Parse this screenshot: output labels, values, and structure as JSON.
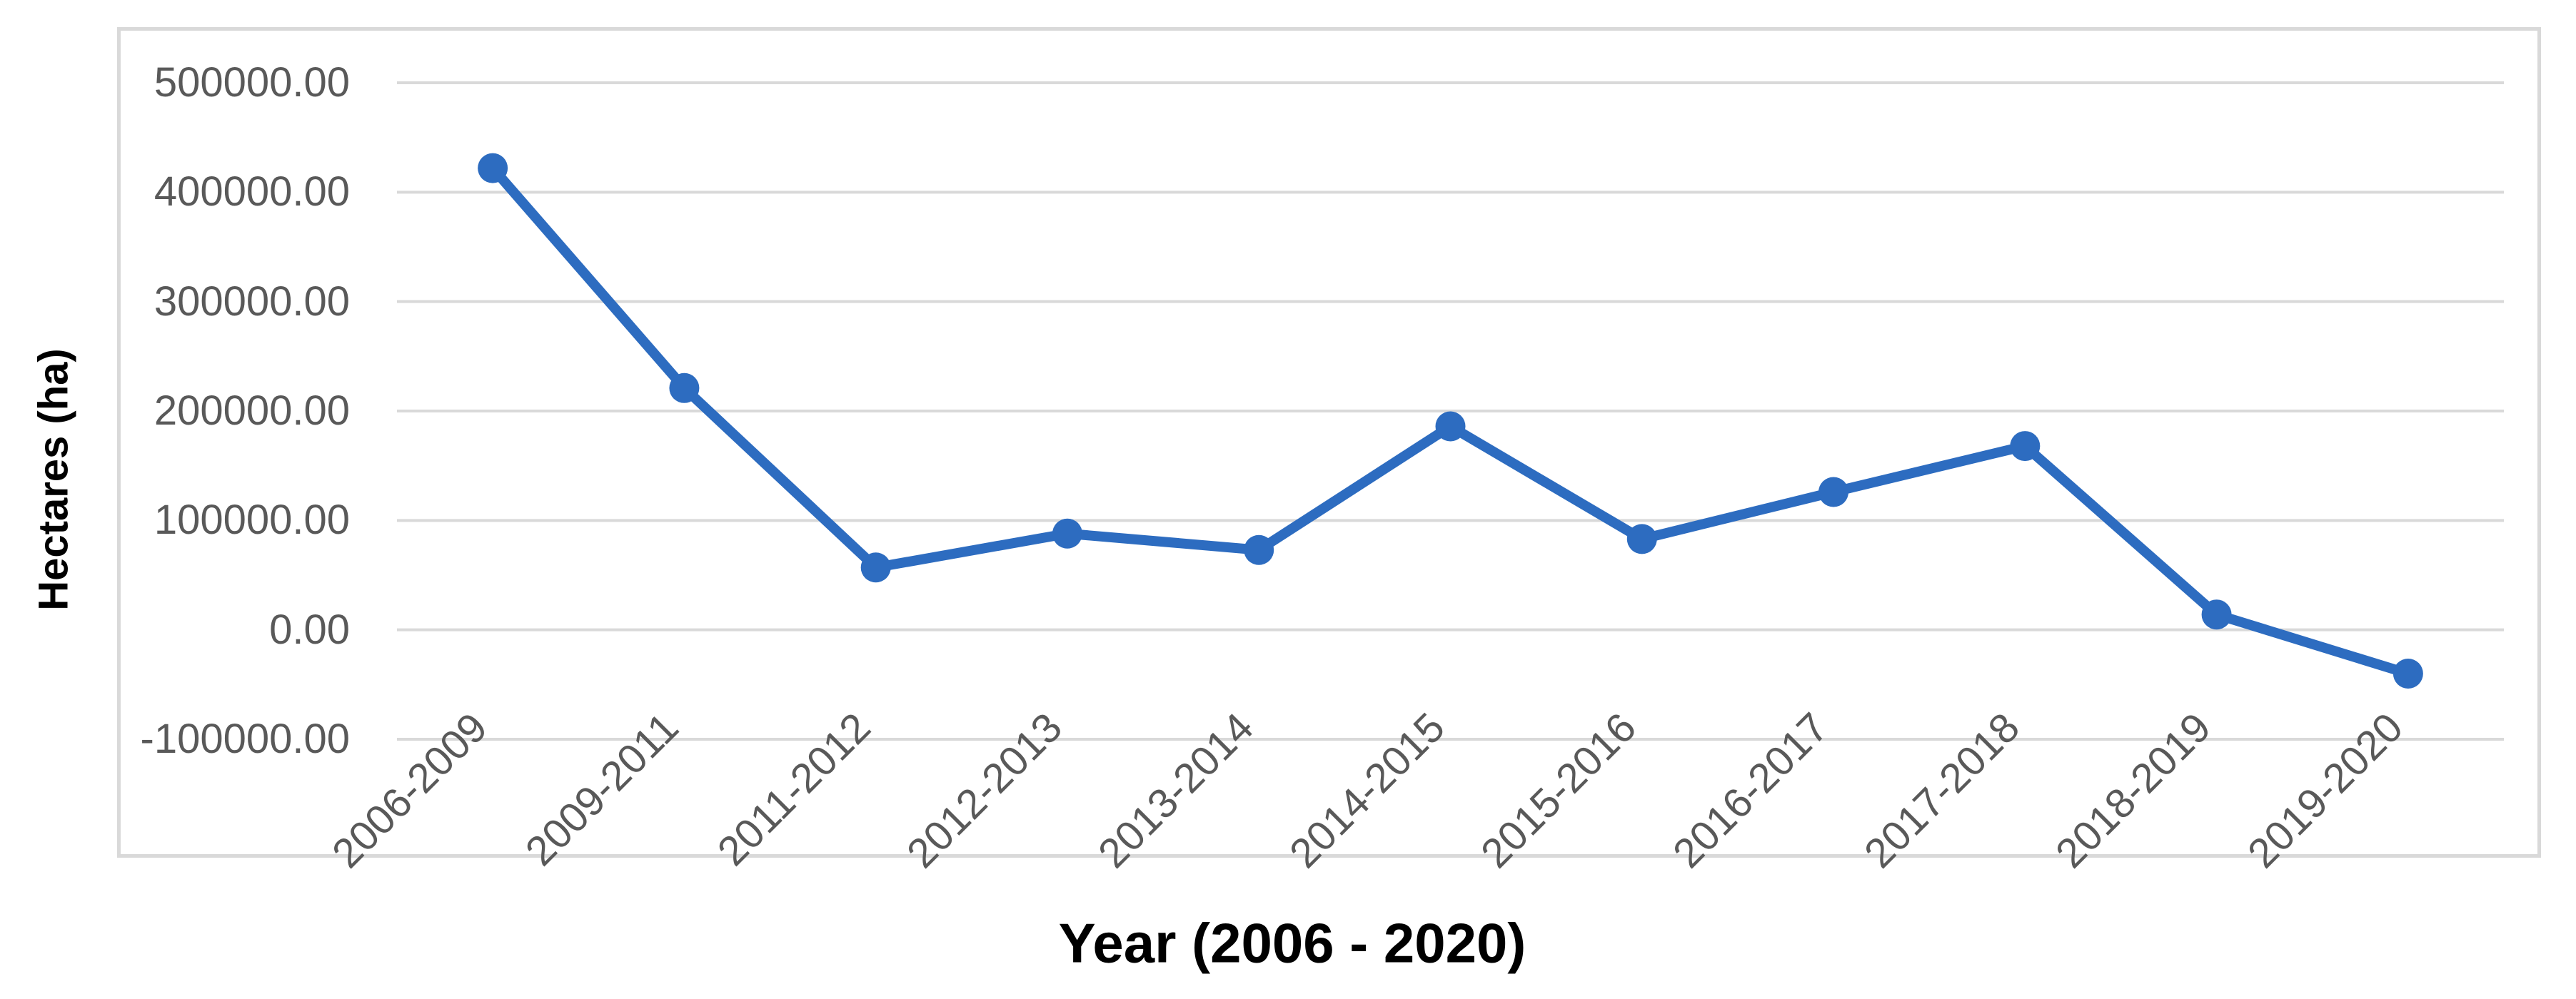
{
  "chart_data": {
    "type": "line",
    "title": "",
    "xlabel": "Year (2006 - 2020)",
    "ylabel": "Hectares (ha)",
    "categories": [
      "2006-2009",
      "2009-2011",
      "2011-2012",
      "2012-2013",
      "2013-2014",
      "2014-2015",
      "2015-2016",
      "2016-2017",
      "2017-2018",
      "2018-2019",
      "2019-2020"
    ],
    "values": [
      422000,
      221000,
      57000,
      88000,
      73000,
      186000,
      83000,
      126000,
      168000,
      14000,
      -40000
    ],
    "ylim": [
      -100000,
      500000
    ],
    "ytick_step": 100000,
    "ytick_labels": [
      "500000.00",
      "400000.00",
      "300000.00",
      "200000.00",
      "100000.00",
      "0.00",
      "-100000.00"
    ],
    "grid": true,
    "legend": false,
    "colors": {
      "line": "#2d6cc0",
      "marker": "#2d6cc0",
      "gridline": "#d9d9d9",
      "border": "#d9d9d9",
      "tick_text": "#595959",
      "title_text": "#000000"
    }
  }
}
